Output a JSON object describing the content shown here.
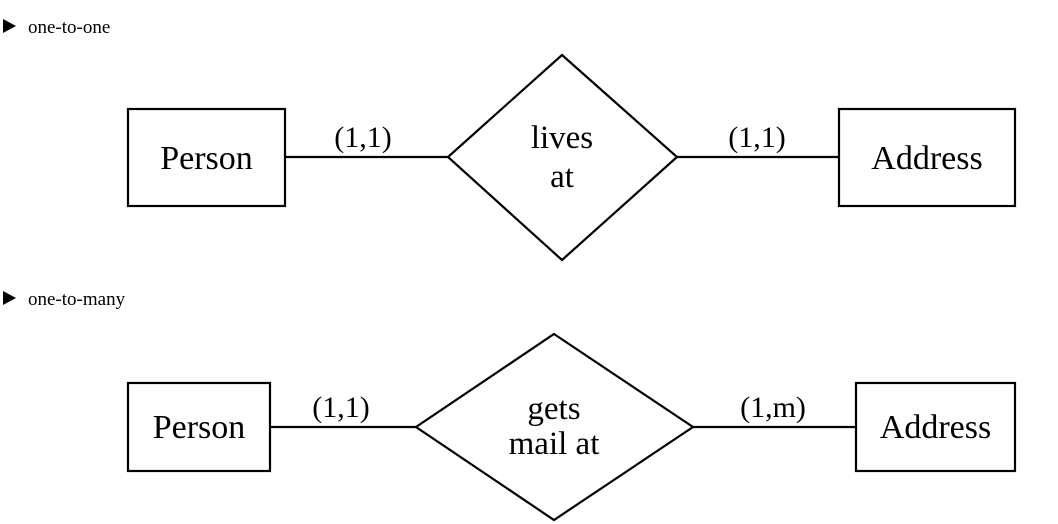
{
  "sections": [
    {
      "bullet_label": "one-to-one",
      "left_entity": "Person",
      "right_entity": "Address",
      "relationship": [
        "lives",
        "at"
      ],
      "left_cardinality": "(1,1)",
      "right_cardinality": "(1,1)"
    },
    {
      "bullet_label": "one-to-many",
      "left_entity": "Person",
      "right_entity": "Address",
      "relationship": [
        "gets",
        "mail at"
      ],
      "left_cardinality": "(1,1)",
      "right_cardinality": "(1,m)"
    }
  ]
}
